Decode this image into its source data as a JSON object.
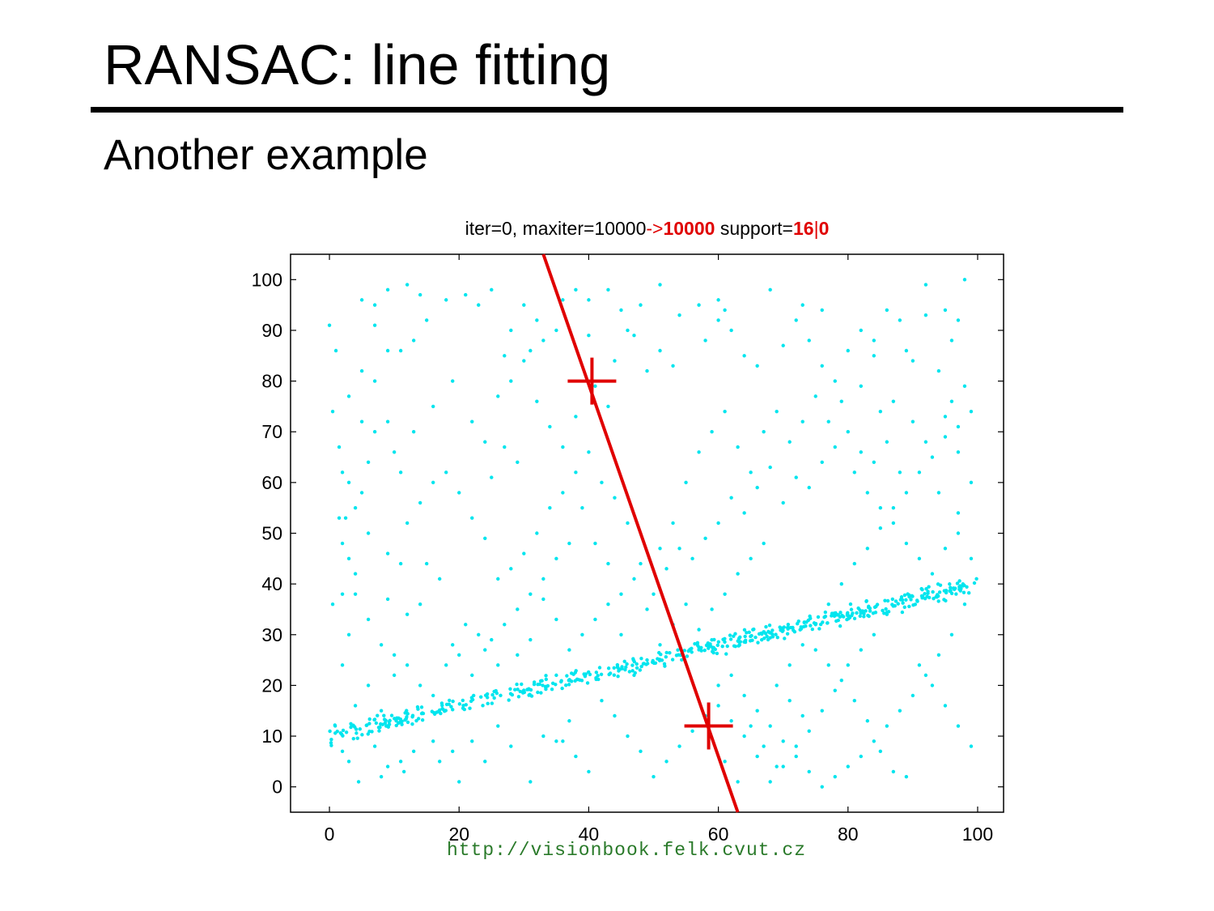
{
  "slide": {
    "title": "RANSAC: line fitting",
    "subtitle": "Another example",
    "footer_url": "http://visionbook.felk.cvut.cz"
  },
  "chart_data": {
    "type": "scatter",
    "title_parts": [
      {
        "text": "iter=0, maxiter=10000",
        "color": "#000000",
        "bold": false
      },
      {
        "text": "->",
        "color": "#e00000",
        "bold": false
      },
      {
        "text": "10000",
        "color": "#e00000",
        "bold": true
      },
      {
        "text": " support=",
        "color": "#000000",
        "bold": false
      },
      {
        "text": "16",
        "color": "#e00000",
        "bold": true
      },
      {
        "text": "|",
        "color": "#e00000",
        "bold": false
      },
      {
        "text": "0",
        "color": "#e00000",
        "bold": true
      }
    ],
    "xlim": [
      -6,
      104
    ],
    "ylim": [
      -5,
      105
    ],
    "xticks": [
      0,
      20,
      40,
      60,
      80,
      100
    ],
    "yticks": [
      0,
      10,
      20,
      30,
      40,
      50,
      60,
      70,
      80,
      90,
      100
    ],
    "grid": false,
    "colors": {
      "points": "#00e5ee",
      "model": "#e00000"
    },
    "inlier_line": {
      "x0": 0,
      "y0": 10,
      "x1": 100,
      "y1": 40,
      "n_points": 520,
      "noise": 1.2
    },
    "outliers": [
      [
        0,
        91
      ],
      [
        1,
        86
      ],
      [
        0.5,
        74
      ],
      [
        1.5,
        67
      ],
      [
        1.5,
        53
      ],
      [
        2.5,
        53
      ],
      [
        2,
        62
      ],
      [
        3,
        45
      ],
      [
        0.5,
        36
      ],
      [
        2,
        38
      ],
      [
        4,
        38
      ],
      [
        3,
        30
      ],
      [
        2,
        24
      ],
      [
        4,
        16
      ],
      [
        2,
        7
      ],
      [
        3,
        5
      ],
      [
        4.5,
        1
      ],
      [
        8,
        2
      ],
      [
        9,
        4
      ],
      [
        11.5,
        3
      ],
      [
        5,
        96
      ],
      [
        7,
        95
      ],
      [
        9,
        98
      ],
      [
        12,
        99
      ],
      [
        14,
        97
      ],
      [
        15,
        92
      ],
      [
        13,
        88
      ],
      [
        11,
        86
      ],
      [
        9,
        86
      ],
      [
        7,
        91
      ],
      [
        5,
        82
      ],
      [
        7,
        80
      ],
      [
        3,
        77
      ],
      [
        5,
        72
      ],
      [
        7,
        70
      ],
      [
        9,
        72
      ],
      [
        11,
        62
      ],
      [
        5,
        58
      ],
      [
        4,
        55
      ],
      [
        6,
        50
      ],
      [
        9,
        46
      ],
      [
        11,
        44
      ],
      [
        12,
        52
      ],
      [
        14,
        56
      ],
      [
        16,
        60
      ],
      [
        15,
        44
      ],
      [
        17,
        41
      ],
      [
        14,
        36
      ],
      [
        12,
        34
      ],
      [
        9,
        37
      ],
      [
        10,
        22
      ],
      [
        8,
        15
      ],
      [
        6,
        20
      ],
      [
        17,
        5
      ],
      [
        19,
        7
      ],
      [
        20,
        1
      ],
      [
        22,
        9
      ],
      [
        24,
        5
      ],
      [
        26,
        12
      ],
      [
        28,
        8
      ],
      [
        31,
        1
      ],
      [
        33,
        10
      ],
      [
        35,
        9
      ],
      [
        37,
        13
      ],
      [
        35,
        22
      ],
      [
        26,
        24
      ],
      [
        24,
        27
      ],
      [
        21,
        32
      ],
      [
        19,
        28
      ],
      [
        23,
        30
      ],
      [
        18,
        96
      ],
      [
        21,
        97
      ],
      [
        23,
        95
      ],
      [
        25,
        98
      ],
      [
        28,
        90
      ],
      [
        30,
        95
      ],
      [
        31,
        86
      ],
      [
        33,
        88
      ],
      [
        35,
        90
      ],
      [
        36,
        96
      ],
      [
        38,
        98
      ],
      [
        40,
        96
      ],
      [
        43,
        98
      ],
      [
        45,
        94
      ],
      [
        46,
        90
      ],
      [
        44,
        84
      ],
      [
        47,
        89
      ],
      [
        49,
        82
      ],
      [
        51,
        86
      ],
      [
        53,
        83
      ],
      [
        51,
        99
      ],
      [
        54,
        93
      ],
      [
        57,
        95
      ],
      [
        58,
        88
      ],
      [
        60,
        92
      ],
      [
        61,
        94
      ],
      [
        62,
        90
      ],
      [
        64,
        85
      ],
      [
        66,
        83
      ],
      [
        68,
        98
      ],
      [
        70,
        87
      ],
      [
        72,
        92
      ],
      [
        73,
        95
      ],
      [
        74,
        88
      ],
      [
        76,
        83
      ],
      [
        78,
        80
      ],
      [
        80,
        86
      ],
      [
        82,
        90
      ],
      [
        84,
        88
      ],
      [
        86,
        94
      ],
      [
        88,
        92
      ],
      [
        89,
        86
      ],
      [
        90,
        84
      ],
      [
        92,
        99
      ],
      [
        95,
        94
      ],
      [
        96,
        88
      ],
      [
        97,
        92
      ],
      [
        98,
        79
      ],
      [
        96,
        76
      ],
      [
        94,
        82
      ],
      [
        82,
        79
      ],
      [
        85,
        74
      ],
      [
        87,
        76
      ],
      [
        90,
        72
      ],
      [
        92,
        68
      ],
      [
        95,
        73
      ],
      [
        97,
        66
      ],
      [
        99,
        60
      ],
      [
        97,
        54
      ],
      [
        94,
        58
      ],
      [
        88,
        62
      ],
      [
        86,
        68
      ],
      [
        84,
        64
      ],
      [
        82,
        66
      ],
      [
        80,
        70
      ],
      [
        78,
        67
      ],
      [
        76,
        64
      ],
      [
        74,
        59
      ],
      [
        72,
        61
      ],
      [
        70,
        56
      ],
      [
        68,
        63
      ],
      [
        66,
        59
      ],
      [
        64,
        54
      ],
      [
        62,
        57
      ],
      [
        60,
        52
      ],
      [
        58,
        49
      ],
      [
        56,
        45
      ],
      [
        54,
        47
      ],
      [
        52,
        43
      ],
      [
        50,
        38
      ],
      [
        48,
        44
      ],
      [
        46,
        52
      ],
      [
        44,
        57
      ],
      [
        42,
        60
      ],
      [
        40,
        66
      ],
      [
        38,
        62
      ],
      [
        36,
        58
      ],
      [
        34,
        55
      ],
      [
        32,
        50
      ],
      [
        30,
        46
      ],
      [
        28,
        43
      ],
      [
        26,
        41
      ],
      [
        24,
        49
      ],
      [
        22,
        53
      ],
      [
        20,
        58
      ],
      [
        18,
        62
      ],
      [
        22,
        72
      ],
      [
        24,
        68
      ],
      [
        26,
        77
      ],
      [
        28,
        80
      ],
      [
        30,
        84
      ],
      [
        32,
        76
      ],
      [
        34,
        71
      ],
      [
        36,
        67
      ],
      [
        38,
        73
      ],
      [
        41,
        79
      ],
      [
        43,
        75
      ],
      [
        39,
        55
      ],
      [
        41,
        48
      ],
      [
        43,
        44
      ],
      [
        45,
        38
      ],
      [
        47,
        41
      ],
      [
        49,
        35
      ],
      [
        51,
        47
      ],
      [
        53,
        52
      ],
      [
        55,
        60
      ],
      [
        57,
        66
      ],
      [
        59,
        70
      ],
      [
        61,
        74
      ],
      [
        63,
        67
      ],
      [
        65,
        62
      ],
      [
        67,
        70
      ],
      [
        69,
        74
      ],
      [
        71,
        68
      ],
      [
        73,
        72
      ],
      [
        75,
        77
      ],
      [
        77,
        72
      ],
      [
        79,
        76
      ],
      [
        81,
        62
      ],
      [
        83,
        58
      ],
      [
        85,
        55
      ],
      [
        87,
        52
      ],
      [
        89,
        48
      ],
      [
        91,
        45
      ],
      [
        93,
        42
      ],
      [
        95,
        47
      ],
      [
        97,
        50
      ],
      [
        99,
        45
      ],
      [
        98,
        36
      ],
      [
        96,
        30
      ],
      [
        94,
        26
      ],
      [
        92,
        22
      ],
      [
        90,
        18
      ],
      [
        88,
        15
      ],
      [
        86,
        12
      ],
      [
        84,
        9
      ],
      [
        82,
        6
      ],
      [
        80,
        4
      ],
      [
        78,
        2
      ],
      [
        76,
        0
      ],
      [
        74,
        3
      ],
      [
        72,
        6
      ],
      [
        70,
        9
      ],
      [
        68,
        12
      ],
      [
        66,
        15
      ],
      [
        64,
        18
      ],
      [
        62,
        22
      ],
      [
        60,
        20
      ],
      [
        58,
        14
      ],
      [
        56,
        11
      ],
      [
        54,
        8
      ],
      [
        52,
        5
      ],
      [
        50,
        2
      ],
      [
        48,
        7
      ],
      [
        46,
        10
      ],
      [
        44,
        14
      ],
      [
        42,
        17
      ],
      [
        40,
        3
      ],
      [
        38,
        6
      ],
      [
        36,
        9
      ],
      [
        99,
        8
      ],
      [
        97,
        12
      ],
      [
        95,
        16
      ],
      [
        93,
        20
      ],
      [
        91,
        24
      ],
      [
        89,
        2
      ],
      [
        87,
        3
      ],
      [
        85,
        7
      ],
      [
        83,
        13
      ],
      [
        81,
        17
      ],
      [
        79,
        21
      ],
      [
        77,
        24
      ],
      [
        75,
        27
      ],
      [
        73,
        14
      ],
      [
        71,
        17
      ],
      [
        69,
        4
      ],
      [
        67,
        8
      ],
      [
        65,
        12
      ],
      [
        63,
        1
      ],
      [
        61,
        5
      ],
      [
        98,
        100
      ],
      [
        92,
        93
      ],
      [
        84,
        85
      ],
      [
        76,
        94
      ],
      [
        60,
        96
      ],
      [
        48,
        95
      ],
      [
        40,
        89
      ],
      [
        32,
        92
      ],
      [
        27,
        85
      ],
      [
        19,
        80
      ],
      [
        16,
        75
      ],
      [
        13,
        70
      ],
      [
        10,
        66
      ],
      [
        6,
        64
      ],
      [
        3,
        60
      ],
      [
        2,
        48
      ],
      [
        4,
        42
      ],
      [
        6,
        33
      ],
      [
        8,
        28
      ],
      [
        10,
        26
      ],
      [
        12,
        24
      ],
      [
        14,
        20
      ],
      [
        16,
        18
      ],
      [
        18,
        24
      ],
      [
        20,
        26
      ],
      [
        22,
        22
      ],
      [
        16,
        9
      ],
      [
        13,
        7
      ],
      [
        11,
        5
      ],
      [
        7,
        8
      ],
      [
        37,
        48
      ],
      [
        35,
        45
      ],
      [
        33,
        41
      ],
      [
        31,
        38
      ],
      [
        29,
        35
      ],
      [
        27,
        32
      ],
      [
        25,
        29
      ],
      [
        29,
        64
      ],
      [
        27,
        67
      ],
      [
        25,
        61
      ],
      [
        57,
        31
      ],
      [
        59,
        35
      ],
      [
        61,
        38
      ],
      [
        63,
        42
      ],
      [
        65,
        45
      ],
      [
        67,
        48
      ],
      [
        55,
        36
      ],
      [
        53,
        32
      ],
      [
        51,
        28
      ],
      [
        49,
        25
      ],
      [
        47,
        22
      ],
      [
        45,
        30
      ],
      [
        43,
        36
      ],
      [
        41,
        33
      ],
      [
        39,
        30
      ],
      [
        37,
        27
      ],
      [
        35,
        33
      ],
      [
        33,
        37
      ],
      [
        31,
        29
      ],
      [
        29,
        26
      ],
      [
        69,
        20
      ],
      [
        71,
        24
      ],
      [
        73,
        28
      ],
      [
        75,
        32
      ],
      [
        77,
        36
      ],
      [
        79,
        40
      ],
      [
        81,
        44
      ],
      [
        83,
        47
      ],
      [
        85,
        51
      ],
      [
        87,
        55
      ],
      [
        89,
        58
      ],
      [
        91,
        62
      ],
      [
        93,
        65
      ],
      [
        95,
        69
      ],
      [
        97,
        71
      ],
      [
        99,
        74
      ],
      [
        86,
        34
      ],
      [
        84,
        30
      ],
      [
        82,
        27
      ],
      [
        80,
        24
      ],
      [
        78,
        19
      ],
      [
        76,
        15
      ],
      [
        74,
        11
      ],
      [
        72,
        8
      ],
      [
        70,
        4
      ],
      [
        68,
        1
      ],
      [
        66,
        6
      ],
      [
        64,
        10
      ],
      [
        62,
        13
      ],
      [
        60,
        16
      ]
    ],
    "model_points": [
      [
        40.5,
        80
      ],
      [
        58.5,
        12
      ]
    ],
    "model_line": {
      "x0": 33,
      "y0": 105,
      "x1": 63,
      "y1": -5
    }
  }
}
